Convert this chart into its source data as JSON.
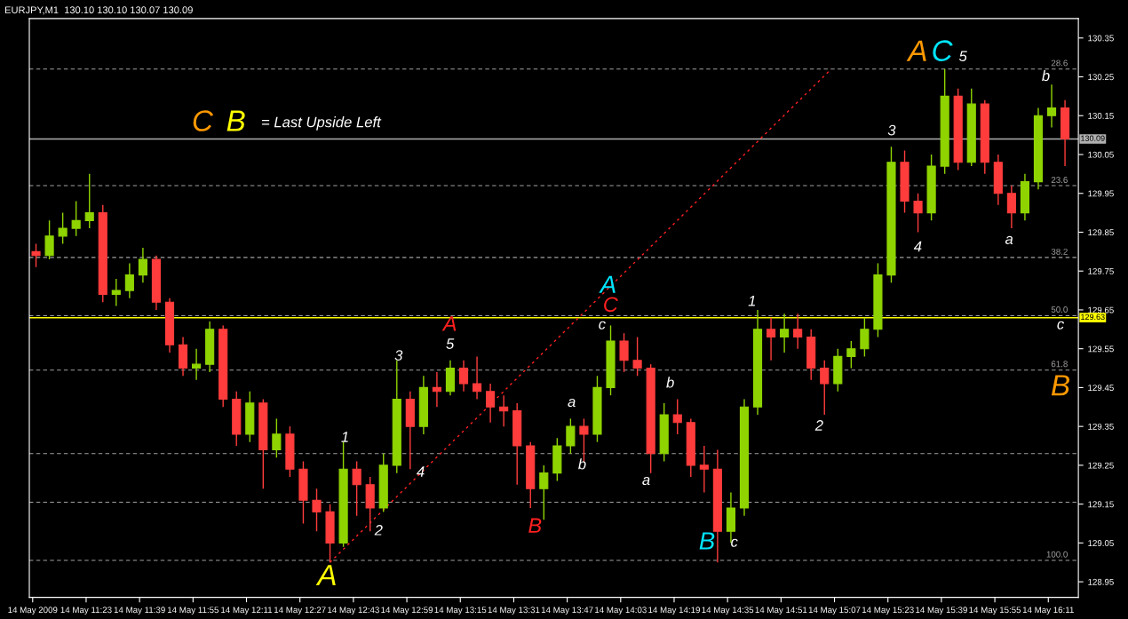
{
  "chart_data": {
    "type": "candlestick",
    "title": "EURJPY,M1  130.10 130.10 130.07 130.09",
    "x": [
      "2009-05-14T11:08",
      "2009-05-14T11:12",
      "2009-05-14T11:16",
      "2009-05-14T11:20",
      "2009-05-14T11:24",
      "2009-05-14T11:28",
      "2009-05-14T11:32",
      "2009-05-14T11:36",
      "2009-05-14T11:40",
      "2009-05-14T11:44",
      "2009-05-14T11:48",
      "2009-05-14T11:52",
      "2009-05-14T11:56",
      "2009-05-14T12:00",
      "2009-05-14T12:04",
      "2009-05-14T12:08",
      "2009-05-14T12:12",
      "2009-05-14T12:16",
      "2009-05-14T12:20",
      "2009-05-14T12:24",
      "2009-05-14T12:28",
      "2009-05-14T12:32",
      "2009-05-14T12:36",
      "2009-05-14T12:40",
      "2009-05-14T12:44",
      "2009-05-14T12:48",
      "2009-05-14T12:52",
      "2009-05-14T12:56",
      "2009-05-14T13:00",
      "2009-05-14T13:04",
      "2009-05-14T13:08",
      "2009-05-14T13:12",
      "2009-05-14T13:16",
      "2009-05-14T13:20",
      "2009-05-14T13:24",
      "2009-05-14T13:28",
      "2009-05-14T13:32",
      "2009-05-14T13:36",
      "2009-05-14T13:40",
      "2009-05-14T13:44",
      "2009-05-14T13:48",
      "2009-05-14T13:52",
      "2009-05-14T13:56",
      "2009-05-14T14:00",
      "2009-05-14T14:04",
      "2009-05-14T14:08",
      "2009-05-14T14:12",
      "2009-05-14T14:16",
      "2009-05-14T14:20",
      "2009-05-14T14:24",
      "2009-05-14T14:28",
      "2009-05-14T14:32",
      "2009-05-14T14:36",
      "2009-05-14T14:40",
      "2009-05-14T14:44",
      "2009-05-14T14:48",
      "2009-05-14T14:52",
      "2009-05-14T14:56",
      "2009-05-14T15:00",
      "2009-05-14T15:04",
      "2009-05-14T15:08",
      "2009-05-14T15:12",
      "2009-05-14T15:16",
      "2009-05-14T15:20",
      "2009-05-14T15:24",
      "2009-05-14T15:28",
      "2009-05-14T15:32",
      "2009-05-14T15:36",
      "2009-05-14T15:40",
      "2009-05-14T15:44",
      "2009-05-14T15:48",
      "2009-05-14T15:52",
      "2009-05-14T15:56",
      "2009-05-14T16:00",
      "2009-05-14T16:04",
      "2009-05-14T16:08",
      "2009-05-14T16:12",
      "2009-05-14T16:16"
    ],
    "ohlc": [
      [
        129.8,
        129.82,
        129.76,
        129.79
      ],
      [
        129.79,
        129.88,
        129.78,
        129.84
      ],
      [
        129.84,
        129.9,
        129.82,
        129.86
      ],
      [
        129.86,
        129.93,
        129.84,
        129.88
      ],
      [
        129.88,
        130.0,
        129.86,
        129.9
      ],
      [
        129.9,
        129.92,
        129.67,
        129.69
      ],
      [
        129.69,
        129.73,
        129.66,
        129.7
      ],
      [
        129.7,
        129.77,
        129.68,
        129.74
      ],
      [
        129.74,
        129.81,
        129.72,
        129.78
      ],
      [
        129.78,
        129.79,
        129.65,
        129.67
      ],
      [
        129.67,
        129.68,
        129.54,
        129.56
      ],
      [
        129.56,
        129.58,
        129.48,
        129.5
      ],
      [
        129.5,
        129.55,
        129.47,
        129.51
      ],
      [
        129.51,
        129.62,
        129.49,
        129.6
      ],
      [
        129.6,
        129.61,
        129.4,
        129.42
      ],
      [
        129.42,
        129.44,
        129.3,
        129.33
      ],
      [
        129.33,
        129.44,
        129.31,
        129.41
      ],
      [
        129.41,
        129.42,
        129.19,
        129.29
      ],
      [
        129.29,
        129.37,
        129.27,
        129.33
      ],
      [
        129.33,
        129.35,
        129.22,
        129.24
      ],
      [
        129.24,
        129.26,
        129.1,
        129.16
      ],
      [
        129.16,
        129.19,
        129.08,
        129.13
      ],
      [
        129.13,
        129.15,
        129.0,
        129.05
      ],
      [
        129.05,
        129.31,
        129.04,
        129.24
      ],
      [
        129.24,
        129.26,
        129.12,
        129.2
      ],
      [
        129.2,
        129.22,
        129.08,
        129.14
      ],
      [
        129.14,
        129.28,
        129.13,
        129.25
      ],
      [
        129.25,
        129.52,
        129.23,
        129.42
      ],
      [
        129.42,
        129.44,
        129.24,
        129.35
      ],
      [
        129.35,
        129.48,
        129.33,
        129.45
      ],
      [
        129.45,
        129.49,
        129.4,
        129.44
      ],
      [
        129.44,
        129.52,
        129.43,
        129.5
      ],
      [
        129.5,
        129.52,
        129.44,
        129.46
      ],
      [
        129.46,
        129.53,
        129.42,
        129.44
      ],
      [
        129.44,
        129.46,
        129.36,
        129.4
      ],
      [
        129.4,
        129.43,
        129.35,
        129.39
      ],
      [
        129.39,
        129.41,
        129.2,
        129.3
      ],
      [
        129.3,
        129.31,
        129.14,
        129.19
      ],
      [
        129.19,
        129.25,
        129.11,
        129.23
      ],
      [
        129.23,
        129.32,
        129.21,
        129.3
      ],
      [
        129.3,
        129.37,
        129.28,
        129.35
      ],
      [
        129.35,
        129.37,
        129.26,
        129.33
      ],
      [
        129.33,
        129.48,
        129.31,
        129.45
      ],
      [
        129.45,
        129.61,
        129.43,
        129.57
      ],
      [
        129.57,
        129.59,
        129.49,
        129.52
      ],
      [
        129.52,
        129.58,
        129.48,
        129.5
      ],
      [
        129.5,
        129.51,
        129.23,
        129.28
      ],
      [
        129.28,
        129.41,
        129.26,
        129.38
      ],
      [
        129.38,
        129.42,
        129.33,
        129.36
      ],
      [
        129.36,
        129.37,
        129.22,
        129.25
      ],
      [
        129.25,
        129.3,
        129.18,
        129.24
      ],
      [
        129.24,
        129.29,
        129.0,
        129.08
      ],
      [
        129.08,
        129.18,
        129.05,
        129.14
      ],
      [
        129.14,
        129.42,
        129.12,
        129.4
      ],
      [
        129.4,
        129.65,
        129.38,
        129.6
      ],
      [
        129.6,
        129.63,
        129.52,
        129.58
      ],
      [
        129.58,
        129.64,
        129.54,
        129.6
      ],
      [
        129.6,
        129.64,
        129.55,
        129.58
      ],
      [
        129.58,
        129.6,
        129.47,
        129.5
      ],
      [
        129.5,
        129.52,
        129.38,
        129.46
      ],
      [
        129.46,
        129.55,
        129.44,
        129.53
      ],
      [
        129.53,
        129.57,
        129.5,
        129.55
      ],
      [
        129.55,
        129.63,
        129.53,
        129.6
      ],
      [
        129.6,
        129.77,
        129.58,
        129.74
      ],
      [
        129.74,
        130.07,
        129.72,
        130.03
      ],
      [
        130.03,
        130.06,
        129.9,
        129.93
      ],
      [
        129.93,
        129.95,
        129.85,
        129.9
      ],
      [
        129.9,
        130.05,
        129.88,
        130.02
      ],
      [
        130.02,
        130.27,
        130.0,
        130.2
      ],
      [
        130.2,
        130.22,
        130.01,
        130.03
      ],
      [
        130.03,
        130.22,
        130.02,
        130.18
      ],
      [
        130.18,
        130.19,
        130.0,
        130.03
      ],
      [
        130.03,
        130.05,
        129.92,
        129.95
      ],
      [
        129.95,
        129.97,
        129.86,
        129.9
      ],
      [
        129.9,
        130.0,
        129.88,
        129.98
      ],
      [
        129.98,
        130.17,
        129.96,
        130.15
      ],
      [
        130.15,
        130.23,
        130.12,
        130.17
      ],
      [
        130.17,
        130.19,
        130.02,
        130.09
      ]
    ],
    "colors": [
      "#ff3c3c",
      "#8fd400",
      "#8fd400",
      "#8fd400",
      "#8fd400",
      "#ff3c3c",
      "#8fd400",
      "#8fd400",
      "#8fd400",
      "#ff3c3c",
      "#ff3c3c",
      "#ff3c3c",
      "#8fd400",
      "#8fd400",
      "#ff3c3c",
      "#ff3c3c",
      "#8fd400",
      "#ff3c3c",
      "#8fd400",
      "#ff3c3c",
      "#ff3c3c",
      "#ff3c3c",
      "#ff3c3c",
      "#8fd400",
      "#ff3c3c",
      "#ff3c3c",
      "#8fd400",
      "#8fd400",
      "#ff3c3c",
      "#8fd400",
      "#ff3c3c",
      "#8fd400",
      "#ff3c3c",
      "#ff3c3c",
      "#ff3c3c",
      "#ff3c3c",
      "#ff3c3c",
      "#ff3c3c",
      "#8fd400",
      "#8fd400",
      "#8fd400",
      "#ff3c3c",
      "#8fd400",
      "#8fd400",
      "#ff3c3c",
      "#ff3c3c",
      "#ff3c3c",
      "#8fd400",
      "#ff3c3c",
      "#ff3c3c",
      "#ff3c3c",
      "#ff3c3c",
      "#8fd400",
      "#8fd400",
      "#8fd400",
      "#ff3c3c",
      "#8fd400",
      "#ff3c3c",
      "#ff3c3c",
      "#ff3c3c",
      "#8fd400",
      "#8fd400",
      "#8fd400",
      "#8fd400",
      "#8fd400",
      "#ff3c3c",
      "#ff3c3c",
      "#8fd400",
      "#8fd400",
      "#ff3c3c",
      "#8fd400",
      "#ff3c3c",
      "#ff3c3c",
      "#ff3c3c",
      "#8fd400",
      "#8fd400",
      "#8fd400",
      "#ff3c3c"
    ],
    "series": [
      {
        "type": "line",
        "x": [
          "2009-05-14T12:36",
          "2009-05-14T15:06"
        ],
        "values": [
          129.0,
          130.27
        ],
        "color": "#ff2020",
        "line_style": "dotted"
      }
    ],
    "xlim": [
      "2009-05-14T11:06",
      "2009-05-14T16:20"
    ],
    "ylim": [
      128.91,
      130.4
    ],
    "xticks": [
      {
        "value": "2009-05-14T11:07",
        "label": "14 May 2009"
      },
      {
        "value": "2009-05-14T11:23",
        "label": "14 May 11:23"
      },
      {
        "value": "2009-05-14T11:39",
        "label": "14 May 11:39"
      },
      {
        "value": "2009-05-14T11:55",
        "label": "14 May 11:55"
      },
      {
        "value": "2009-05-14T12:11",
        "label": "14 May 12:11"
      },
      {
        "value": "2009-05-14T12:27",
        "label": "14 May 12:27"
      },
      {
        "value": "2009-05-14T12:43",
        "label": "14 May 12:43"
      },
      {
        "value": "2009-05-14T12:59",
        "label": "14 May 12:59"
      },
      {
        "value": "2009-05-14T13:15",
        "label": "14 May 13:15"
      },
      {
        "value": "2009-05-14T13:31",
        "label": "14 May 13:31"
      },
      {
        "value": "2009-05-14T13:47",
        "label": "14 May 13:47"
      },
      {
        "value": "2009-05-14T14:03",
        "label": "14 May 14:03"
      },
      {
        "value": "2009-05-14T14:19",
        "label": "14 May 14:19"
      },
      {
        "value": "2009-05-14T14:35",
        "label": "14 May 14:35"
      },
      {
        "value": "2009-05-14T14:51",
        "label": "14 May 14:51"
      },
      {
        "value": "2009-05-14T15:07",
        "label": "14 May 15:07"
      },
      {
        "value": "2009-05-14T15:23",
        "label": "14 May 15:23"
      },
      {
        "value": "2009-05-14T15:39",
        "label": "14 May 15:39"
      },
      {
        "value": "2009-05-14T15:55",
        "label": "14 May 15:55"
      },
      {
        "value": "2009-05-14T16:11",
        "label": "14 May 16:11"
      }
    ],
    "yticks": [
      {
        "value": 128.95,
        "label": "128.95"
      },
      {
        "value": 129.05,
        "label": "129.05"
      },
      {
        "value": 129.15,
        "label": "129.15"
      },
      {
        "value": 129.25,
        "label": "129.25"
      },
      {
        "value": 129.35,
        "label": "129.35"
      },
      {
        "value": 129.45,
        "label": "129.45"
      },
      {
        "value": 129.55,
        "label": "129.55"
      },
      {
        "value": 129.65,
        "label": "129.65"
      },
      {
        "value": 129.75,
        "label": "129.75"
      },
      {
        "value": 129.85,
        "label": "129.85"
      },
      {
        "value": 129.95,
        "label": "129.95"
      },
      {
        "value": 130.05,
        "label": "130.05"
      },
      {
        "value": 130.15,
        "label": "130.15"
      },
      {
        "value": 130.25,
        "label": "130.25"
      },
      {
        "value": 130.35,
        "label": "130.35"
      }
    ],
    "ref_lines": [
      {
        "axis": "y",
        "value": 130.27,
        "color": "#a0a0a0",
        "line_style": "dashed"
      },
      {
        "axis": "y",
        "value": 129.97,
        "color": "#a0a0a0",
        "line_style": "dashed"
      },
      {
        "axis": "y",
        "value": 129.785,
        "color": "#a0a0a0",
        "line_style": "dashed"
      },
      {
        "axis": "y",
        "value": 129.635,
        "color": "#a0a0a0",
        "line_style": "dashed"
      },
      {
        "axis": "y",
        "value": 129.495,
        "color": "#a0a0a0",
        "line_style": "dashed"
      },
      {
        "axis": "y",
        "value": 129.28,
        "color": "#a0a0a0",
        "line_style": "dashed"
      },
      {
        "axis": "y",
        "value": 129.155,
        "color": "#a0a0a0",
        "line_style": "dashed"
      },
      {
        "axis": "y",
        "value": 129.005,
        "color": "#a0a0a0",
        "line_style": "dashed"
      },
      {
        "axis": "y",
        "value": 130.09,
        "label": "130.09",
        "color": "#b0b0b0",
        "line_style": "solid"
      },
      {
        "axis": "y",
        "value": 129.63,
        "label": "129.63",
        "color": "#ffff00",
        "line_style": "solid"
      }
    ],
    "annotations": [
      "A",
      "1",
      "2",
      "3",
      "4",
      "5",
      "A",
      "B",
      "a",
      "b",
      "c",
      "A",
      "C",
      "a",
      "b",
      "B",
      "c",
      "1",
      "2",
      "3",
      "4",
      "A",
      "C",
      "5",
      "a",
      "b",
      "c",
      "B",
      "C",
      "B",
      "= Last Upside Left",
      "28.6",
      "23.6",
      "38.2",
      "50.0",
      "61.8",
      "100.0"
    ]
  }
}
